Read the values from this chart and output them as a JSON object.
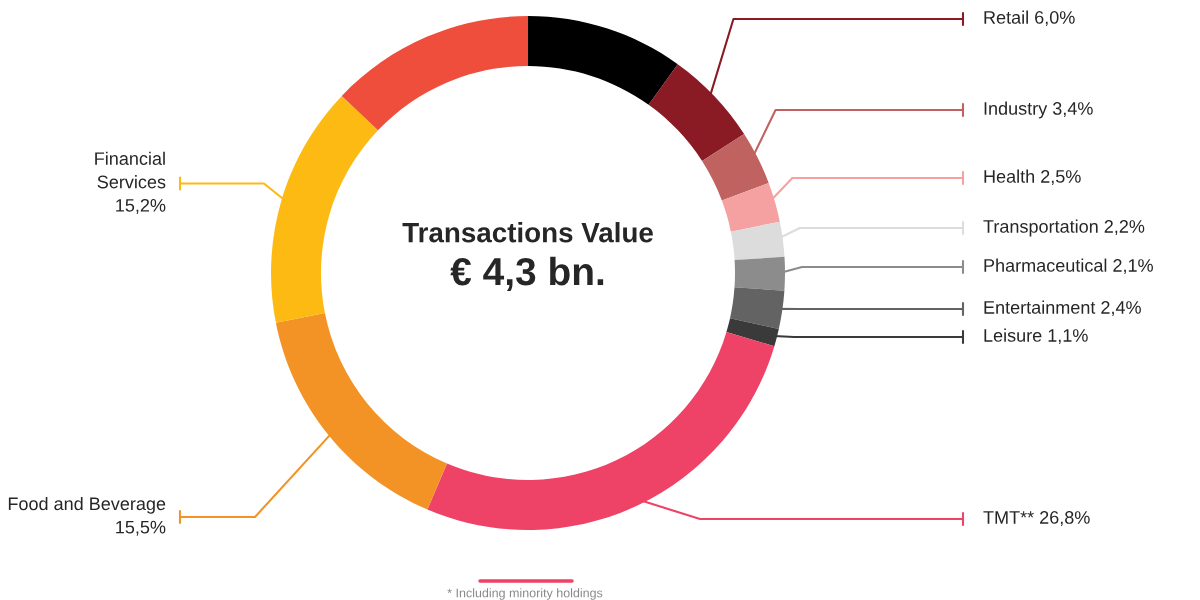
{
  "chart_data": {
    "type": "donut",
    "title": "Transactions Value",
    "subtitle": "€ 4,3 bn.",
    "categories": [
      null,
      "Retail",
      "Industry",
      "Health",
      "Transportation",
      "Pharmaceutical",
      "Entertainment",
      "Leisure",
      "TMT**",
      "Food and Beverage",
      "Financial Services",
      null
    ],
    "values": [
      9.9,
      6.0,
      3.4,
      2.5,
      2.2,
      2.1,
      2.4,
      1.1,
      26.8,
      15.5,
      15.2,
      12.9
    ],
    "value_labels": [
      null,
      "6,0%",
      "3,4%",
      "2,5%",
      "2,2%",
      "2,1%",
      "2,4%",
      "1,1%",
      "26,8%",
      "15,5%",
      "15,2%",
      null
    ],
    "colors": [
      "#000000",
      "#8a1a24",
      "#c0625f",
      "#f5a0a1",
      "#dcdcdc",
      "#8c8c8c",
      "#636363",
      "#3a3a3a",
      "#ee4266",
      "#f39325",
      "#fdba12",
      "#ef4e3c"
    ],
    "annotations": [
      "* Including minority holdings"
    ],
    "legend": "right"
  }
}
